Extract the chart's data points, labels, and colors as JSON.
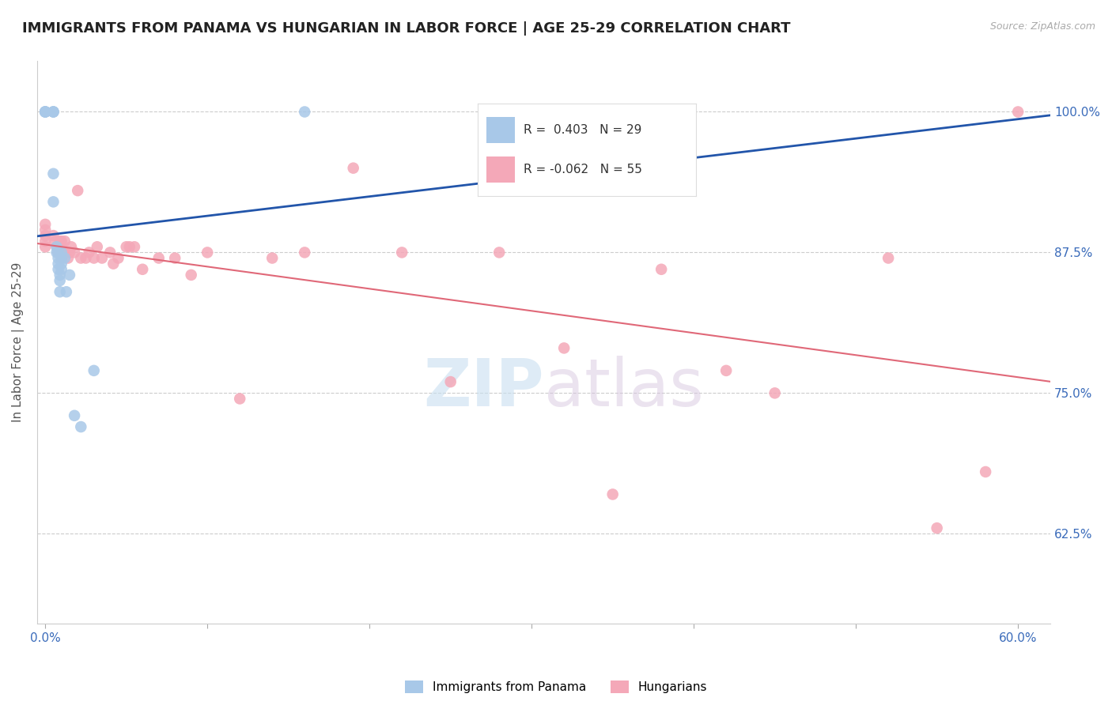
{
  "title": "IMMIGRANTS FROM PANAMA VS HUNGARIAN IN LABOR FORCE | AGE 25-29 CORRELATION CHART",
  "source": "Source: ZipAtlas.com",
  "ylabel": "In Labor Force | Age 25-29",
  "x_ticks": [
    "0.0%",
    "",
    "",
    "",
    "",
    "",
    "60.0%"
  ],
  "x_tick_vals": [
    0.0,
    0.1,
    0.2,
    0.3,
    0.4,
    0.5,
    0.6
  ],
  "y_ticks_right": [
    "100.0%",
    "87.5%",
    "75.0%",
    "62.5%"
  ],
  "y_tick_vals": [
    1.0,
    0.875,
    0.75,
    0.625
  ],
  "xlim": [
    -0.005,
    0.62
  ],
  "ylim": [
    0.545,
    1.045
  ],
  "panama_R": 0.403,
  "panama_N": 29,
  "hungarian_R": -0.062,
  "hungarian_N": 55,
  "panama_color": "#a8c8e8",
  "hungarian_color": "#f4a8b8",
  "panama_line_color": "#2255aa",
  "hungarian_line_color": "#e06878",
  "panama_x": [
    0.0,
    0.0,
    0.0,
    0.0,
    0.005,
    0.005,
    0.005,
    0.005,
    0.005,
    0.007,
    0.007,
    0.008,
    0.008,
    0.008,
    0.008,
    0.009,
    0.009,
    0.009,
    0.01,
    0.01,
    0.01,
    0.01,
    0.012,
    0.013,
    0.015,
    0.018,
    0.022,
    0.03,
    0.16
  ],
  "panama_y": [
    1.0,
    1.0,
    1.0,
    1.0,
    1.0,
    1.0,
    1.0,
    0.945,
    0.92,
    0.88,
    0.875,
    0.875,
    0.87,
    0.865,
    0.86,
    0.855,
    0.85,
    0.84,
    0.875,
    0.87,
    0.865,
    0.86,
    0.87,
    0.84,
    0.855,
    0.73,
    0.72,
    0.77,
    1.0
  ],
  "hungarian_x": [
    0.0,
    0.0,
    0.0,
    0.0,
    0.0,
    0.005,
    0.006,
    0.007,
    0.008,
    0.008,
    0.009,
    0.01,
    0.01,
    0.01,
    0.01,
    0.012,
    0.012,
    0.014,
    0.015,
    0.016,
    0.018,
    0.02,
    0.022,
    0.025,
    0.027,
    0.03,
    0.032,
    0.035,
    0.04,
    0.042,
    0.045,
    0.05,
    0.052,
    0.055,
    0.06,
    0.07,
    0.08,
    0.09,
    0.1,
    0.12,
    0.14,
    0.16,
    0.19,
    0.22,
    0.25,
    0.28,
    0.32,
    0.35,
    0.38,
    0.42,
    0.45,
    0.52,
    0.55,
    0.58,
    0.6
  ],
  "hungarian_y": [
    0.9,
    0.895,
    0.89,
    0.885,
    0.88,
    0.89,
    0.885,
    0.88,
    0.875,
    0.88,
    0.885,
    0.885,
    0.88,
    0.875,
    0.87,
    0.885,
    0.875,
    0.87,
    0.875,
    0.88,
    0.875,
    0.93,
    0.87,
    0.87,
    0.875,
    0.87,
    0.88,
    0.87,
    0.875,
    0.865,
    0.87,
    0.88,
    0.88,
    0.88,
    0.86,
    0.87,
    0.87,
    0.855,
    0.875,
    0.745,
    0.87,
    0.875,
    0.95,
    0.875,
    0.76,
    0.875,
    0.79,
    0.66,
    0.86,
    0.77,
    0.75,
    0.87,
    0.63,
    0.68,
    1.0
  ],
  "watermark_zip": "ZIP",
  "watermark_atlas": "atlas",
  "bg_color": "#ffffff",
  "grid_color": "#cccccc",
  "tick_color": "#3a6bba",
  "title_color": "#222222",
  "source_color": "#aaaaaa",
  "ylabel_color": "#555555"
}
